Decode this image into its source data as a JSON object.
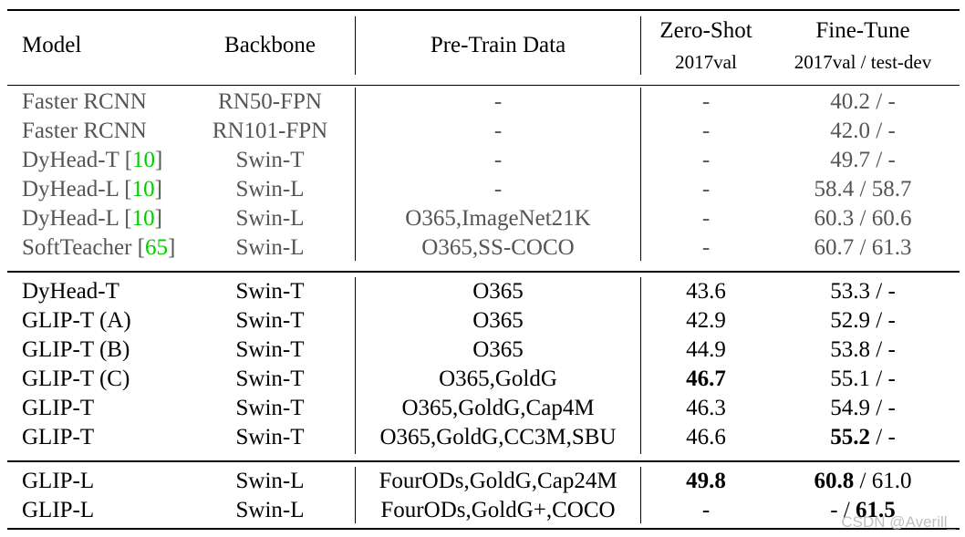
{
  "header": {
    "model": "Model",
    "backbone": "Backbone",
    "pretrain": "Pre-Train Data",
    "zeroshot": "Zero-Shot",
    "zeroshot_sub": "2017val",
    "finetune": "Fine-Tune",
    "finetune_sub": "2017val / test-dev"
  },
  "groups": [
    {
      "style": "gray",
      "rows": [
        {
          "model": "Faster RCNN",
          "cite": "",
          "backbone": "RN50-FPN",
          "pretrain": "-",
          "zeroshot": "-",
          "zs_bold": false,
          "ft_a": "40.2",
          "ft_a_bold": false,
          "ft_b": "-",
          "ft_b_bold": false
        },
        {
          "model": "Faster RCNN",
          "cite": "",
          "backbone": "RN101-FPN",
          "pretrain": "-",
          "zeroshot": "-",
          "zs_bold": false,
          "ft_a": "42.0",
          "ft_a_bold": false,
          "ft_b": "-",
          "ft_b_bold": false
        },
        {
          "model": "DyHead-T",
          "cite": "10",
          "backbone": "Swin-T",
          "pretrain": "-",
          "zeroshot": "-",
          "zs_bold": false,
          "ft_a": "49.7",
          "ft_a_bold": false,
          "ft_b": "-",
          "ft_b_bold": false
        },
        {
          "model": "DyHead-L",
          "cite": "10",
          "backbone": "Swin-L",
          "pretrain": "-",
          "zeroshot": "-",
          "zs_bold": false,
          "ft_a": "58.4",
          "ft_a_bold": false,
          "ft_b": "58.7",
          "ft_b_bold": false
        },
        {
          "model": "DyHead-L",
          "cite": "10",
          "backbone": "Swin-L",
          "pretrain": "O365,ImageNet21K",
          "zeroshot": "-",
          "zs_bold": false,
          "ft_a": "60.3",
          "ft_a_bold": false,
          "ft_b": "60.6",
          "ft_b_bold": false
        },
        {
          "model": "SoftTeacher",
          "cite": "65",
          "backbone": "Swin-L",
          "pretrain": "O365,SS-COCO",
          "zeroshot": "-",
          "zs_bold": false,
          "ft_a": "60.7",
          "ft_a_bold": false,
          "ft_b": "61.3",
          "ft_b_bold": false
        }
      ]
    },
    {
      "style": "black",
      "rows": [
        {
          "model": "DyHead-T",
          "cite": "",
          "backbone": "Swin-T",
          "pretrain": "O365",
          "zeroshot": "43.6",
          "zs_bold": false,
          "ft_a": "53.3",
          "ft_a_bold": false,
          "ft_b": "-",
          "ft_b_bold": false
        },
        {
          "model": "GLIP-T (A)",
          "cite": "",
          "backbone": "Swin-T",
          "pretrain": "O365",
          "zeroshot": "42.9",
          "zs_bold": false,
          "ft_a": "52.9",
          "ft_a_bold": false,
          "ft_b": "-",
          "ft_b_bold": false
        },
        {
          "model": "GLIP-T (B)",
          "cite": "",
          "backbone": "Swin-T",
          "pretrain": "O365",
          "zeroshot": "44.9",
          "zs_bold": false,
          "ft_a": "53.8",
          "ft_a_bold": false,
          "ft_b": "-",
          "ft_b_bold": false
        },
        {
          "model": "GLIP-T (C)",
          "cite": "",
          "backbone": "Swin-T",
          "pretrain": "O365,GoldG",
          "zeroshot": "46.7",
          "zs_bold": true,
          "ft_a": "55.1",
          "ft_a_bold": false,
          "ft_b": "-",
          "ft_b_bold": false
        },
        {
          "model": "GLIP-T",
          "cite": "",
          "backbone": "Swin-T",
          "pretrain": "O365,GoldG,Cap4M",
          "zeroshot": "46.3",
          "zs_bold": false,
          "ft_a": "54.9",
          "ft_a_bold": false,
          "ft_b": "-",
          "ft_b_bold": false
        },
        {
          "model": "GLIP-T",
          "cite": "",
          "backbone": "Swin-T",
          "pretrain": "O365,GoldG,CC3M,SBU",
          "zeroshot": "46.6",
          "zs_bold": false,
          "ft_a": "55.2",
          "ft_a_bold": true,
          "ft_b": "-",
          "ft_b_bold": false
        }
      ]
    },
    {
      "style": "black",
      "rows": [
        {
          "model": "GLIP-L",
          "cite": "",
          "backbone": "Swin-L",
          "pretrain": "FourODs,GoldG,Cap24M",
          "zeroshot": "49.8",
          "zs_bold": true,
          "ft_a": "60.8",
          "ft_a_bold": true,
          "ft_b": "61.0",
          "ft_b_bold": false
        },
        {
          "model": "GLIP-L",
          "cite": "",
          "backbone": "Swin-L",
          "pretrain": "FourODs,GoldG+,COCO",
          "zeroshot": "-",
          "zs_bold": false,
          "ft_a": "-",
          "ft_a_bold": false,
          "ft_b": "61.5",
          "ft_b_bold": true
        }
      ]
    }
  ],
  "watermark": "CSDN @Averill_"
}
